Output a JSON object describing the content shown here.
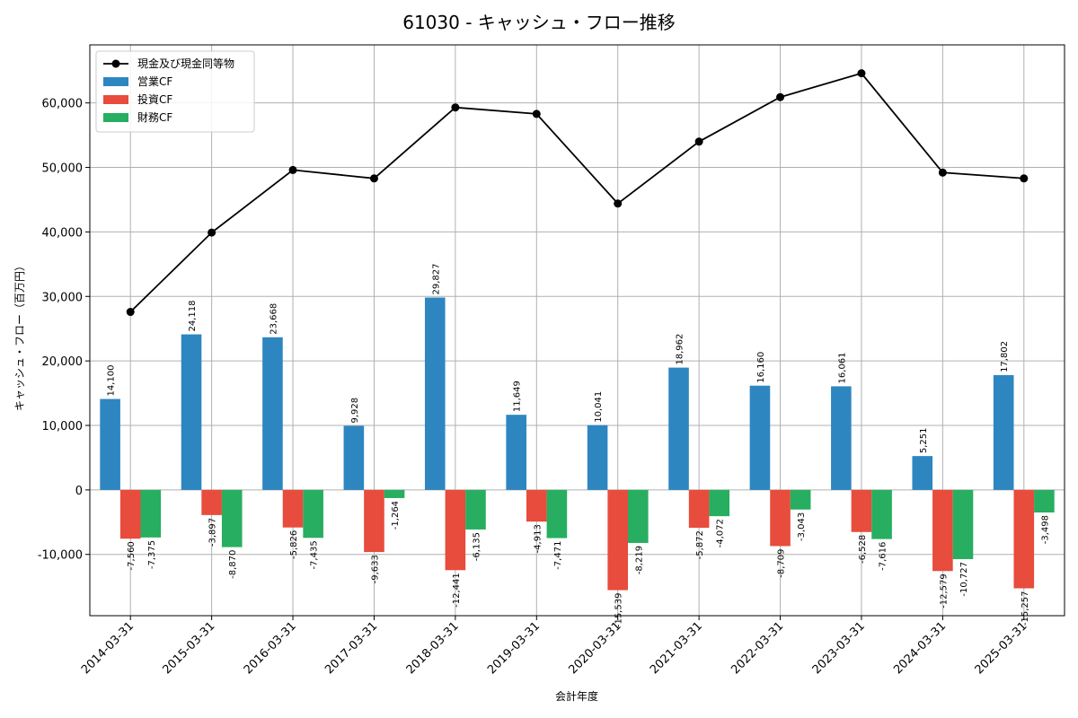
{
  "chart_data": {
    "type": "bar",
    "title": "61030 - キャッシュ・フロー推移",
    "xlabel": "会計年度",
    "ylabel": "キャッシュ・フロー（百万円）",
    "ylim": [
      -19500,
      69000
    ],
    "yticks": [
      -10000,
      0,
      10000,
      20000,
      30000,
      40000,
      50000,
      60000
    ],
    "ytick_labels": [
      "-10,000",
      "0",
      "10,000",
      "20,000",
      "30,000",
      "40,000",
      "50,000",
      "60,000"
    ],
    "grid": true,
    "legend_position": "top-left",
    "categories": [
      "2014-03-31",
      "2015-03-31",
      "2016-03-31",
      "2017-03-31",
      "2018-03-31",
      "2019-03-31",
      "2020-03-31",
      "2021-03-31",
      "2022-03-31",
      "2023-03-31",
      "2024-03-31",
      "2025-03-31"
    ],
    "series": [
      {
        "name": "営業CF",
        "kind": "bar",
        "color": "#2e86c1",
        "values": [
          14100,
          24118,
          23668,
          9928,
          29827,
          11649,
          10041,
          18962,
          16160,
          16061,
          5251,
          17802
        ],
        "labels": [
          "14,100",
          "24,118",
          "23,668",
          "9,928",
          "29,827",
          "11,649",
          "10,041",
          "18,962",
          "16,160",
          "16,061",
          "5,251",
          "17,802"
        ]
      },
      {
        "name": "投資CF",
        "kind": "bar",
        "color": "#e74c3c",
        "values": [
          -7560,
          -3897,
          -5826,
          -9633,
          -12441,
          -4913,
          -15539,
          -5872,
          -8709,
          -6528,
          -12579,
          -15257
        ],
        "labels": [
          "-7,560",
          "-3,897",
          "-5,826",
          "-9,633",
          "-12,441",
          "-4,913",
          "-15,539",
          "-5,872",
          "-8,709",
          "-6,528",
          "-12,579",
          "-15,257"
        ]
      },
      {
        "name": "財務CF",
        "kind": "bar",
        "color": "#27ae60",
        "values": [
          -7375,
          -8870,
          -7435,
          -1264,
          -6135,
          -7471,
          -8219,
          -4072,
          -3043,
          -7616,
          -10727,
          -3498
        ],
        "labels": [
          "-7,375",
          "-8,870",
          "-7,435",
          "-1,264",
          "-6,135",
          "-7,471",
          "-8,219",
          "-4,072",
          "-3,043",
          "-7,616",
          "-10,727",
          "-3,498"
        ]
      },
      {
        "name": "現金及び現金同等物",
        "kind": "line",
        "color": "#000000",
        "values": [
          27600,
          39900,
          49600,
          48300,
          59300,
          58300,
          44400,
          54000,
          60900,
          64600,
          49200,
          48300
        ]
      }
    ]
  }
}
